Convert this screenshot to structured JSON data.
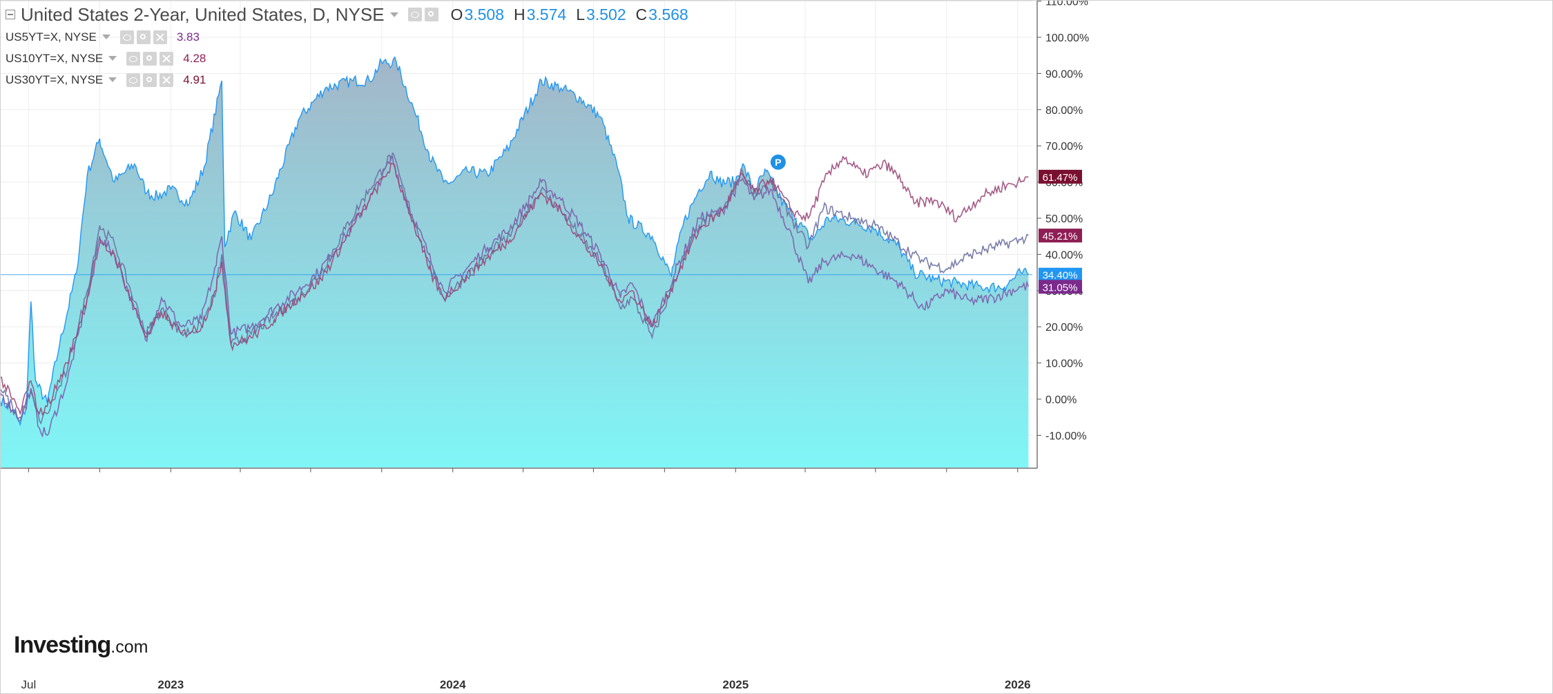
{
  "legend": {
    "main": {
      "title": "United States 2-Year, United States, D, NYSE",
      "o_label": "O",
      "o_value": "3.508",
      "h_label": "H",
      "h_value": "3.574",
      "l_label": "L",
      "l_value": "3.502",
      "c_label": "C",
      "c_value": "3.568"
    },
    "compare": [
      {
        "name": "US5YT=X, NYSE",
        "value": "3.83",
        "color": "#7b2a8c"
      },
      {
        "name": "US10YT=X, NYSE",
        "value": "4.28",
        "color": "#8e1f55"
      },
      {
        "name": "US30YT=X, NYSE",
        "value": "4.91",
        "color": "#7a1030"
      }
    ]
  },
  "logo": {
    "bold": "Investing",
    "suffix": ".com"
  },
  "chart_data": {
    "type": "area",
    "title": "United States 2-Year, United States, D, NYSE",
    "x_unit": "date",
    "x_tick_labels": [
      {
        "label": "Jul",
        "date": "2022-07-01"
      },
      {
        "label": "2023",
        "date": "2023-01-01"
      },
      {
        "label": "2024",
        "date": "2024-01-01"
      },
      {
        "label": "2025",
        "date": "2025-01-01"
      },
      {
        "label": "2026",
        "date": "2026-01-01"
      }
    ],
    "x_minor_ticks": [
      "2022-10-01",
      "2023-04-01",
      "2023-07-01",
      "2023-10-01",
      "2024-04-01",
      "2024-07-01",
      "2024-10-01",
      "2025-04-01",
      "2025-07-01",
      "2025-10-01"
    ],
    "xlim": [
      "2022-05-25",
      "2026-01-20"
    ],
    "ylim": [
      -22,
      110
    ],
    "y_ticks": [
      -10,
      0,
      10,
      20,
      30,
      40,
      50,
      60,
      70,
      80,
      90,
      100,
      110
    ],
    "y_tick_format": "{v}.00%",
    "grid": true,
    "reference_line": 34.4,
    "series": [
      {
        "name": "United States 2-Year",
        "color": "#2196f3",
        "fill_top": "#a3b6c8",
        "fill_bottom": "#7ff6f7",
        "last_label": "34.40%",
        "points": [
          [
            "2022-05-25",
            0
          ],
          [
            "2022-06-10",
            -3
          ],
          [
            "2022-06-20",
            -7
          ],
          [
            "2022-06-28",
            -2
          ],
          [
            "2022-07-04",
            27
          ],
          [
            "2022-07-10",
            5
          ],
          [
            "2022-07-25",
            -1
          ],
          [
            "2022-08-10",
            15
          ],
          [
            "2022-09-01",
            35
          ],
          [
            "2022-09-15",
            62
          ],
          [
            "2022-10-01",
            72
          ],
          [
            "2022-10-20",
            60
          ],
          [
            "2022-11-15",
            65
          ],
          [
            "2022-12-01",
            57
          ],
          [
            "2022-12-15",
            56
          ],
          [
            "2023-01-01",
            58
          ],
          [
            "2023-01-25",
            54
          ],
          [
            "2023-02-15",
            65
          ],
          [
            "2023-03-08",
            88
          ],
          [
            "2023-03-12",
            42
          ],
          [
            "2023-03-25",
            52
          ],
          [
            "2023-04-15",
            44
          ],
          [
            "2023-05-15",
            58
          ],
          [
            "2023-06-15",
            77
          ],
          [
            "2023-07-20",
            86
          ],
          [
            "2023-08-25",
            88
          ],
          [
            "2023-09-15",
            88
          ],
          [
            "2023-10-01",
            93
          ],
          [
            "2023-10-20",
            93
          ],
          [
            "2023-11-15",
            78
          ],
          [
            "2023-12-01",
            68
          ],
          [
            "2023-12-20",
            60
          ],
          [
            "2024-01-01",
            60
          ],
          [
            "2024-01-20",
            63
          ],
          [
            "2024-02-15",
            62
          ],
          [
            "2024-03-15",
            70
          ],
          [
            "2024-04-25",
            88
          ],
          [
            "2024-05-20",
            86
          ],
          [
            "2024-06-15",
            83
          ],
          [
            "2024-07-10",
            78
          ],
          [
            "2024-08-01",
            64
          ],
          [
            "2024-08-15",
            50
          ],
          [
            "2024-09-15",
            45
          ],
          [
            "2024-10-01",
            38
          ],
          [
            "2024-10-10",
            34
          ],
          [
            "2024-10-25",
            48
          ],
          [
            "2024-11-15",
            58
          ],
          [
            "2024-12-01",
            63
          ],
          [
            "2024-12-10",
            60
          ],
          [
            "2025-01-01",
            60
          ],
          [
            "2025-01-10",
            65
          ],
          [
            "2025-01-25",
            58
          ],
          [
            "2025-02-10",
            63
          ],
          [
            "2025-03-01",
            55
          ],
          [
            "2025-03-20",
            50
          ],
          [
            "2025-04-10",
            44
          ],
          [
            "2025-05-01",
            50
          ],
          [
            "2025-06-01",
            49
          ],
          [
            "2025-07-01",
            47
          ],
          [
            "2025-08-01",
            42
          ],
          [
            "2025-08-20",
            35
          ],
          [
            "2025-09-15",
            33
          ],
          [
            "2025-10-15",
            32
          ],
          [
            "2025-11-15",
            31
          ],
          [
            "2025-12-15",
            31
          ],
          [
            "2026-01-05",
            35
          ],
          [
            "2026-01-15",
            34.4
          ]
        ]
      },
      {
        "name": "US5YT=X, NYSE",
        "color": "#7b5cab",
        "last_label": "31.05%",
        "last_label_color": "#7b2a8c",
        "points": [
          [
            "2022-05-25",
            2
          ],
          [
            "2022-06-10",
            -3
          ],
          [
            "2022-06-20",
            -5
          ],
          [
            "2022-07-04",
            3
          ],
          [
            "2022-07-15",
            -8
          ],
          [
            "2022-07-25",
            -10
          ],
          [
            "2022-08-20",
            5
          ],
          [
            "2022-09-15",
            28
          ],
          [
            "2022-10-01",
            45
          ],
          [
            "2022-10-20",
            40
          ],
          [
            "2022-11-15",
            25
          ],
          [
            "2022-12-01",
            16
          ],
          [
            "2022-12-20",
            28
          ],
          [
            "2023-01-15",
            20
          ],
          [
            "2023-02-10",
            22
          ],
          [
            "2023-03-01",
            37
          ],
          [
            "2023-03-08",
            45
          ],
          [
            "2023-03-20",
            18
          ],
          [
            "2023-04-15",
            20
          ],
          [
            "2023-05-15",
            25
          ],
          [
            "2023-06-15",
            30
          ],
          [
            "2023-07-15",
            36
          ],
          [
            "2023-08-15",
            45
          ],
          [
            "2023-09-15",
            55
          ],
          [
            "2023-10-15",
            67
          ],
          [
            "2023-11-01",
            55
          ],
          [
            "2023-12-01",
            40
          ],
          [
            "2023-12-20",
            30
          ],
          [
            "2024-01-15",
            35
          ],
          [
            "2024-02-15",
            42
          ],
          [
            "2024-03-15",
            47
          ],
          [
            "2024-04-25",
            60
          ],
          [
            "2024-05-20",
            55
          ],
          [
            "2024-06-15",
            48
          ],
          [
            "2024-07-10",
            40
          ],
          [
            "2024-08-05",
            28
          ],
          [
            "2024-08-20",
            32
          ],
          [
            "2024-09-15",
            20
          ],
          [
            "2024-10-15",
            35
          ],
          [
            "2024-11-15",
            50
          ],
          [
            "2024-12-15",
            52
          ],
          [
            "2025-01-10",
            61
          ],
          [
            "2025-01-25",
            55
          ],
          [
            "2025-02-15",
            58
          ],
          [
            "2025-03-15",
            45
          ],
          [
            "2025-04-05",
            32
          ],
          [
            "2025-04-25",
            38
          ],
          [
            "2025-06-01",
            40
          ],
          [
            "2025-07-01",
            36
          ],
          [
            "2025-08-01",
            32
          ],
          [
            "2025-09-01",
            25
          ],
          [
            "2025-10-01",
            30
          ],
          [
            "2025-11-01",
            27
          ],
          [
            "2025-12-01",
            28
          ],
          [
            "2026-01-05",
            31
          ],
          [
            "2026-01-15",
            31.05
          ]
        ]
      },
      {
        "name": "US10YT=X, NYSE",
        "color": "#6a6fa0",
        "last_label": "45.21%",
        "last_label_color": "#8e1f55",
        "points": [
          [
            "2022-05-25",
            3
          ],
          [
            "2022-06-10",
            -2
          ],
          [
            "2022-06-20",
            -6
          ],
          [
            "2022-07-04",
            2
          ],
          [
            "2022-07-15",
            -6
          ],
          [
            "2022-07-25",
            -4
          ],
          [
            "2022-08-20",
            8
          ],
          [
            "2022-09-15",
            30
          ],
          [
            "2022-10-01",
            48
          ],
          [
            "2022-10-20",
            43
          ],
          [
            "2022-11-15",
            27
          ],
          [
            "2022-12-01",
            18
          ],
          [
            "2022-12-20",
            25
          ],
          [
            "2023-01-15",
            18
          ],
          [
            "2023-02-10",
            20
          ],
          [
            "2023-03-01",
            30
          ],
          [
            "2023-03-08",
            40
          ],
          [
            "2023-03-20",
            15
          ],
          [
            "2023-04-15",
            18
          ],
          [
            "2023-05-15",
            23
          ],
          [
            "2023-06-15",
            28
          ],
          [
            "2023-07-15",
            35
          ],
          [
            "2023-08-15",
            47
          ],
          [
            "2023-09-15",
            58
          ],
          [
            "2023-10-15",
            68
          ],
          [
            "2023-11-01",
            56
          ],
          [
            "2023-12-01",
            38
          ],
          [
            "2023-12-20",
            28
          ],
          [
            "2024-01-15",
            33
          ],
          [
            "2024-02-15",
            40
          ],
          [
            "2024-03-15",
            45
          ],
          [
            "2024-04-25",
            58
          ],
          [
            "2024-05-20",
            52
          ],
          [
            "2024-06-15",
            45
          ],
          [
            "2024-07-10",
            38
          ],
          [
            "2024-08-05",
            25
          ],
          [
            "2024-08-20",
            28
          ],
          [
            "2024-09-15",
            17
          ],
          [
            "2024-10-15",
            33
          ],
          [
            "2024-11-15",
            48
          ],
          [
            "2024-12-15",
            52
          ],
          [
            "2025-01-10",
            63
          ],
          [
            "2025-01-25",
            57
          ],
          [
            "2025-02-15",
            60
          ],
          [
            "2025-03-15",
            50
          ],
          [
            "2025-04-05",
            42
          ],
          [
            "2025-04-25",
            53
          ],
          [
            "2025-06-01",
            50
          ],
          [
            "2025-07-01",
            48
          ],
          [
            "2025-08-01",
            43
          ],
          [
            "2025-09-01",
            38
          ],
          [
            "2025-10-01",
            36
          ],
          [
            "2025-11-01",
            40
          ],
          [
            "2025-12-01",
            42
          ],
          [
            "2026-01-05",
            44
          ],
          [
            "2026-01-15",
            45.21
          ]
        ]
      },
      {
        "name": "US30YT=X, NYSE",
        "color": "#9a4878",
        "last_label": "61.47%",
        "last_label_color": "#7a1030",
        "points": [
          [
            "2022-05-25",
            6
          ],
          [
            "2022-06-10",
            0
          ],
          [
            "2022-06-20",
            -4
          ],
          [
            "2022-06-28",
            2
          ],
          [
            "2022-07-04",
            5
          ],
          [
            "2022-07-15",
            -4
          ],
          [
            "2022-07-25",
            -2
          ],
          [
            "2022-08-20",
            10
          ],
          [
            "2022-09-15",
            28
          ],
          [
            "2022-10-01",
            43
          ],
          [
            "2022-10-20",
            40
          ],
          [
            "2022-11-15",
            25
          ],
          [
            "2022-12-01",
            17
          ],
          [
            "2022-12-20",
            24
          ],
          [
            "2023-01-15",
            18
          ],
          [
            "2023-02-10",
            20
          ],
          [
            "2023-03-01",
            30
          ],
          [
            "2023-03-08",
            38
          ],
          [
            "2023-03-20",
            15
          ],
          [
            "2023-04-15",
            17
          ],
          [
            "2023-05-15",
            22
          ],
          [
            "2023-06-15",
            28
          ],
          [
            "2023-07-15",
            33
          ],
          [
            "2023-08-15",
            44
          ],
          [
            "2023-09-15",
            55
          ],
          [
            "2023-10-15",
            65
          ],
          [
            "2023-11-01",
            55
          ],
          [
            "2023-12-01",
            36
          ],
          [
            "2023-12-20",
            28
          ],
          [
            "2024-01-15",
            33
          ],
          [
            "2024-02-15",
            39
          ],
          [
            "2024-03-15",
            44
          ],
          [
            "2024-04-25",
            57
          ],
          [
            "2024-05-20",
            52
          ],
          [
            "2024-06-15",
            44
          ],
          [
            "2024-07-10",
            37
          ],
          [
            "2024-08-05",
            27
          ],
          [
            "2024-08-20",
            30
          ],
          [
            "2024-09-15",
            20
          ],
          [
            "2024-10-15",
            33
          ],
          [
            "2024-11-15",
            47
          ],
          [
            "2024-12-15",
            52
          ],
          [
            "2025-01-10",
            62
          ],
          [
            "2025-01-25",
            57
          ],
          [
            "2025-02-15",
            61
          ],
          [
            "2025-03-15",
            52
          ],
          [
            "2025-04-05",
            50
          ],
          [
            "2025-04-25",
            60
          ],
          [
            "2025-05-20",
            67
          ],
          [
            "2025-06-15",
            62
          ],
          [
            "2025-07-15",
            65
          ],
          [
            "2025-08-05",
            60
          ],
          [
            "2025-08-20",
            54
          ],
          [
            "2025-09-15",
            55
          ],
          [
            "2025-10-15",
            50
          ],
          [
            "2025-11-15",
            56
          ],
          [
            "2025-12-15",
            59
          ],
          [
            "2026-01-05",
            60
          ],
          [
            "2026-01-15",
            61.47
          ]
        ]
      }
    ],
    "annotation": {
      "text": "P",
      "date": "2025-02-25",
      "value": 65.5,
      "color": "#1e90e6"
    }
  }
}
